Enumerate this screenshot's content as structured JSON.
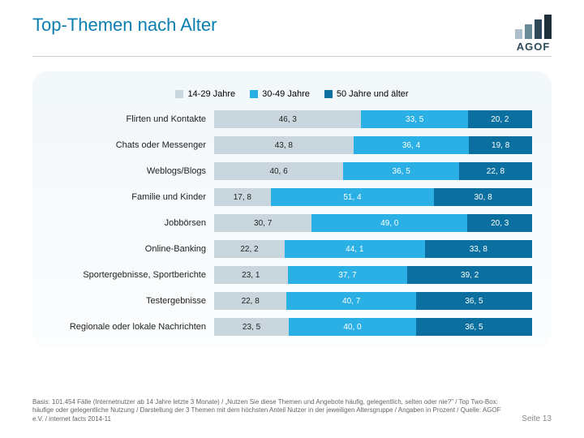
{
  "title": {
    "text": "Top-Themen nach Alter",
    "color": "#0b7fb0"
  },
  "logo": {
    "bars": [
      {
        "h": 12,
        "c": "#aebfc9"
      },
      {
        "h": 18,
        "c": "#6a8a98"
      },
      {
        "h": 24,
        "c": "#304758"
      },
      {
        "h": 30,
        "c": "#1e2f3a"
      }
    ],
    "text": "AGOF"
  },
  "chart": {
    "type": "stacked-bar-horizontal",
    "series": [
      {
        "name": "14-29 Jahre",
        "color": "#c9d6dd"
      },
      {
        "name": "30-49 Jahre",
        "color": "#2bb0e6"
      },
      {
        "name": "50 Jahre und älter",
        "color": "#0b6fa0"
      }
    ],
    "label_fontsize": 11,
    "value_fontsize": 10,
    "max": 100,
    "rows": [
      {
        "cat": "Flirten und Kontakte",
        "v": [
          46.3,
          33.5,
          20.2
        ]
      },
      {
        "cat": "Chats oder Messenger",
        "v": [
          43.8,
          36.4,
          19.8
        ]
      },
      {
        "cat": "Weblogs/Blogs",
        "v": [
          40.6,
          36.5,
          22.8
        ]
      },
      {
        "cat": "Familie und Kinder",
        "v": [
          17.8,
          51.4,
          30.8
        ]
      },
      {
        "cat": "Jobbörsen",
        "v": [
          30.7,
          49.0,
          20.3
        ]
      },
      {
        "cat": "Online-Banking",
        "v": [
          22.2,
          44.1,
          33.8
        ]
      },
      {
        "cat": "Sportergebnisse, Sportberichte",
        "v": [
          23.1,
          37.7,
          39.2
        ]
      },
      {
        "cat": "Testergebnisse",
        "v": [
          22.8,
          40.7,
          36.5
        ]
      },
      {
        "cat": "Regionale oder lokale Nachrichten",
        "v": [
          23.5,
          40.0,
          36.5
        ]
      }
    ]
  },
  "footnote": "Basis: 101.454 Fälle (Internetnutzer ab 14 Jahre letzte 3 Monate) / „Nutzen Sie diese Themen und Angebote häufig, gelegentlich, selten oder nie?\" / Top Two-Box: häufige oder gelegentliche Nutzung / Darstellung der 3 Themen mit dem höchsten Anteil Nutzer in der jeweiligen Altersgruppe / Angaben in Prozent / Quelle: AGOF e.V. / internet facts 2014-11",
  "pageno": "Seite 13"
}
